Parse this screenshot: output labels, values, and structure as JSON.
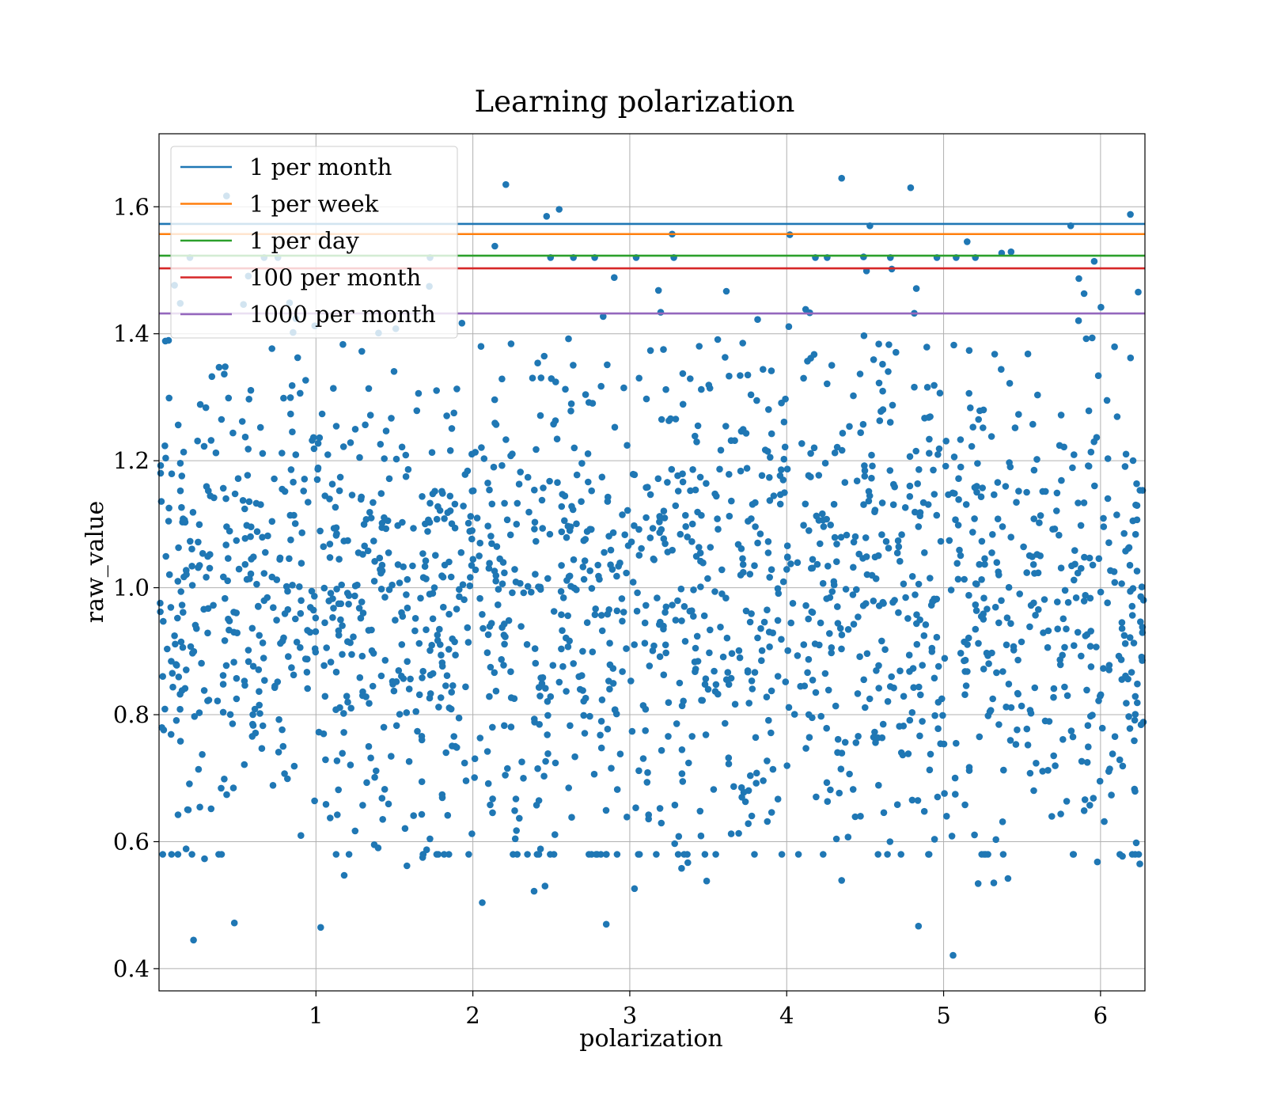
{
  "chart_data": {
    "type": "scatter",
    "title": "Learning polarization",
    "xlabel": "polarization",
    "ylabel": "raw_value",
    "xlim": [
      0,
      6.283
    ],
    "ylim": [
      0.365,
      1.715
    ],
    "x_ticks": [
      1,
      2,
      3,
      4,
      5,
      6
    ],
    "y_ticks": [
      0.4,
      0.6,
      0.8,
      1.0,
      1.2,
      1.4,
      1.6
    ],
    "x_tick_labels": [
      "1",
      "2",
      "3",
      "4",
      "5",
      "6"
    ],
    "y_tick_labels": [
      "0.4",
      "0.6",
      "0.8",
      "1.0",
      "1.2",
      "1.4",
      "1.6"
    ],
    "grid": true,
    "legend_position": "top-left",
    "scatter_color": "#1f77b4",
    "reference_lines": [
      {
        "name": "1 per month",
        "y": 1.573,
        "color": "#1f77b4"
      },
      {
        "name": "1 per week",
        "y": 1.557,
        "color": "#ff7f0e"
      },
      {
        "name": "1 per day",
        "y": 1.523,
        "color": "#2ca02c"
      },
      {
        "name": "100 per month",
        "y": 1.503,
        "color": "#d62728"
      },
      {
        "name": "1000 per month",
        "y": 1.432,
        "color": "#9467bd"
      }
    ],
    "points": [
      [
        0.22,
        0.445
      ],
      [
        0.48,
        0.472
      ],
      [
        1.03,
        0.465
      ],
      [
        2.85,
        0.47
      ],
      [
        4.84,
        0.467
      ],
      [
        5.06,
        0.421
      ],
      [
        2.06,
        0.504
      ],
      [
        2.39,
        0.522
      ],
      [
        2.46,
        0.53
      ],
      [
        3.03,
        0.526
      ],
      [
        3.33,
        0.558
      ],
      [
        3.37,
        0.567
      ],
      [
        3.49,
        0.538
      ],
      [
        4.35,
        0.539
      ],
      [
        5.22,
        0.534
      ],
      [
        5.32,
        0.535
      ],
      [
        5.41,
        0.542
      ],
      [
        5.98,
        0.568
      ],
      [
        6.14,
        0.577
      ],
      [
        6.25,
        0.565
      ],
      [
        0.29,
        0.573
      ],
      [
        1.18,
        0.547
      ],
      [
        1.58,
        0.562
      ],
      [
        1.68,
        0.575
      ],
      [
        2.21,
        1.635
      ],
      [
        4.35,
        1.645
      ],
      [
        4.79,
        1.63
      ],
      [
        2.55,
        1.596
      ],
      [
        2.47,
        1.585
      ],
      [
        6.19,
        1.588
      ],
      [
        0.43,
        1.617
      ],
      [
        4.53,
        1.57
      ],
      [
        5.81,
        1.57
      ],
      [
        3.27,
        1.557
      ],
      [
        4.02,
        1.556
      ],
      [
        5.15,
        1.545
      ],
      [
        2.14,
        1.538
      ],
      [
        5.37,
        1.527
      ],
      [
        5.43,
        1.529
      ],
      [
        5.96,
        1.514
      ],
      [
        4.67,
        1.502
      ],
      [
        4.49,
        1.521
      ]
    ]
  }
}
